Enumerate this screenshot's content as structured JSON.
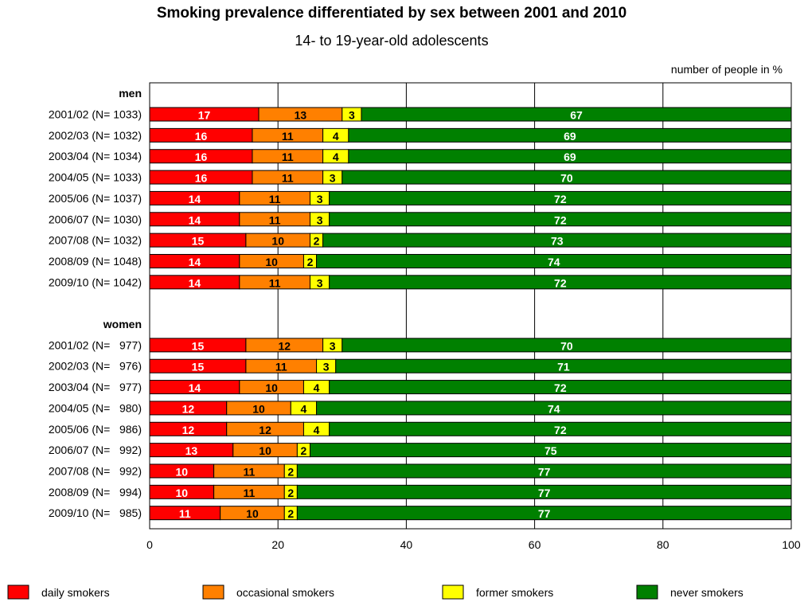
{
  "chart_data": {
    "type": "bar",
    "orientation": "horizontal",
    "stacked": true,
    "title": "Smoking prevalence differentiated by sex between 2001 and 2010",
    "subtitle": "14- to 19-year-old adolescents",
    "unit_label": "number of people in %",
    "xlim": [
      0,
      100
    ],
    "x_ticks": [
      "0",
      "20",
      "40",
      "60",
      "80",
      "100"
    ],
    "grid": true,
    "legend_position": "bottom",
    "series": [
      {
        "name": "daily smokers",
        "color": "#ff0000",
        "label_color": "#ffffff"
      },
      {
        "name": "occasional smokers",
        "color": "#ff8000",
        "label_color": "#000000"
      },
      {
        "name": "former smokers",
        "color": "#ffff00",
        "label_color": "#000000"
      },
      {
        "name": "never smokers",
        "color": "#008000",
        "label_color": "#ffffff"
      }
    ],
    "groups": [
      {
        "name": "men",
        "rows": [
          {
            "label": "2001/02 (N= 1033)",
            "values": [
              17,
              13,
              3,
              67
            ]
          },
          {
            "label": "2002/03 (N= 1032)",
            "values": [
              16,
              11,
              4,
              69
            ]
          },
          {
            "label": "2003/04 (N= 1034)",
            "values": [
              16,
              11,
              4,
              69
            ]
          },
          {
            "label": "2004/05 (N= 1033)",
            "values": [
              16,
              11,
              3,
              70
            ]
          },
          {
            "label": "2005/06 (N= 1037)",
            "values": [
              14,
              11,
              3,
              72
            ]
          },
          {
            "label": "2006/07 (N= 1030)",
            "values": [
              14,
              11,
              3,
              72
            ]
          },
          {
            "label": "2007/08 (N= 1032)",
            "values": [
              15,
              10,
              2,
              73
            ]
          },
          {
            "label": "2008/09 (N= 1048)",
            "values": [
              14,
              10,
              2,
              74
            ]
          },
          {
            "label": "2009/10 (N= 1042)",
            "values": [
              14,
              11,
              3,
              72
            ]
          }
        ]
      },
      {
        "name": "women",
        "rows": [
          {
            "label": "2001/02 (N=   977)",
            "values": [
              15,
              12,
              3,
              70
            ]
          },
          {
            "label": "2002/03 (N=   976)",
            "values": [
              15,
              11,
              3,
              71
            ]
          },
          {
            "label": "2003/04 (N=   977)",
            "values": [
              14,
              10,
              4,
              72
            ]
          },
          {
            "label": "2004/05 (N=   980)",
            "values": [
              12,
              10,
              4,
              74
            ]
          },
          {
            "label": "2005/06 (N=   986)",
            "values": [
              12,
              12,
              4,
              72
            ]
          },
          {
            "label": "2006/07 (N=   992)",
            "values": [
              13,
              10,
              2,
              75
            ]
          },
          {
            "label": "2007/08 (N=   992)",
            "values": [
              10,
              11,
              2,
              77
            ]
          },
          {
            "label": "2008/09 (N=   994)",
            "values": [
              10,
              11,
              2,
              77
            ]
          },
          {
            "label": "2009/10 (N=   985)",
            "values": [
              11,
              10,
              2,
              77
            ]
          }
        ]
      }
    ]
  }
}
